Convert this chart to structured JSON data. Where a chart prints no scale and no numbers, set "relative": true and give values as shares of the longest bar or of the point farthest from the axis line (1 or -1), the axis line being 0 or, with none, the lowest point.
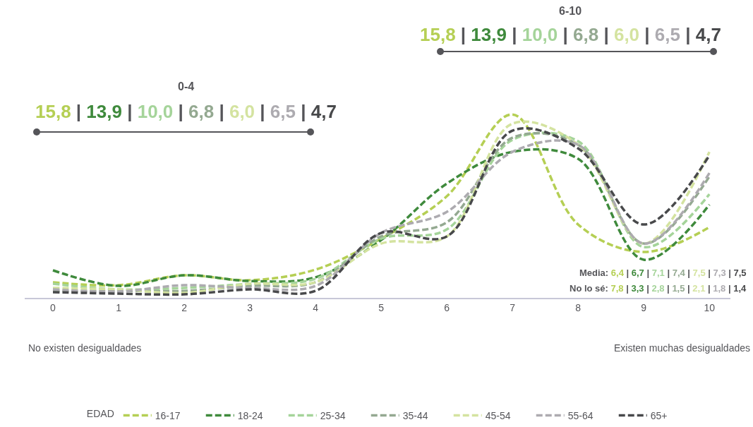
{
  "chart_data": {
    "type": "line",
    "relative": true,
    "line_style": "dashed",
    "marker": "none",
    "legend": "bottom",
    "legend_title": "EDAD",
    "x": [
      0,
      1,
      2,
      3,
      4,
      5,
      6,
      7,
      8,
      9,
      10
    ],
    "xlim": [
      -0.43,
      10.32
    ],
    "xticks": [
      0,
      1,
      2,
      3,
      4,
      5,
      6,
      7,
      8,
      9,
      10
    ],
    "series": [
      {
        "name": "16-17",
        "color": "#b5cf54",
        "values": [
          0.085,
          0.069,
          0.123,
          0.096,
          0.154,
          0.323,
          0.554,
          1,
          0.4,
          0.25,
          0.385
        ]
      },
      {
        "name": "18-24",
        "color": "#3f8a3c",
        "values": [
          0.15,
          0.065,
          0.123,
          0.092,
          0.112,
          0.315,
          0.623,
          0.796,
          0.758,
          0.208,
          0.508
        ]
      },
      {
        "name": "25-34",
        "color": "#a5d49a",
        "values": [
          0.077,
          0.046,
          0.054,
          0.077,
          0.104,
          0.323,
          0.373,
          0.862,
          0.854,
          0.277,
          0.565
        ]
      },
      {
        "name": "35-44",
        "color": "#94a991",
        "values": [
          0.038,
          0.038,
          0.038,
          0.065,
          0.085,
          0.335,
          0.412,
          0.873,
          0.835,
          0.296,
          0.662
        ]
      },
      {
        "name": "45-54",
        "color": "#d4e3a0",
        "values": [
          0.054,
          0.046,
          0.027,
          0.077,
          0.085,
          0.296,
          0.335,
          0.95,
          0.835,
          0.296,
          0.796
        ]
      },
      {
        "name": "55-64",
        "color": "#adabb0",
        "values": [
          0.046,
          0.035,
          0.069,
          0.054,
          0.065,
          0.354,
          0.469,
          0.796,
          0.835,
          0.296,
          0.681
        ]
      },
      {
        "name": "65+",
        "color": "#48494b",
        "values": [
          0.031,
          0.023,
          0.019,
          0.046,
          0.038,
          0.354,
          0.335,
          0.912,
          0.815,
          0.4,
          0.777
        ]
      }
    ],
    "annotations": [
      "0-4",
      "15,8 | 13,9 | 10,0 | 6,8 | 6,0 | 6,5 | 4,7",
      "6-10",
      "15,8 | 13,9 | 10,0 | 6,8 | 6,0 | 6,5 | 4,7",
      "Media: 6,4 | 6,7 | 7,1 | 7,4 | 7,5 | 7,3 | 7,5",
      "No lo sé: 7,8 | 3,3 | 2,8 | 1,5 | 2,1 | 1,8 | 1,4",
      "No existen desigualdades",
      "Existen muchas desigualdades"
    ]
  }
}
